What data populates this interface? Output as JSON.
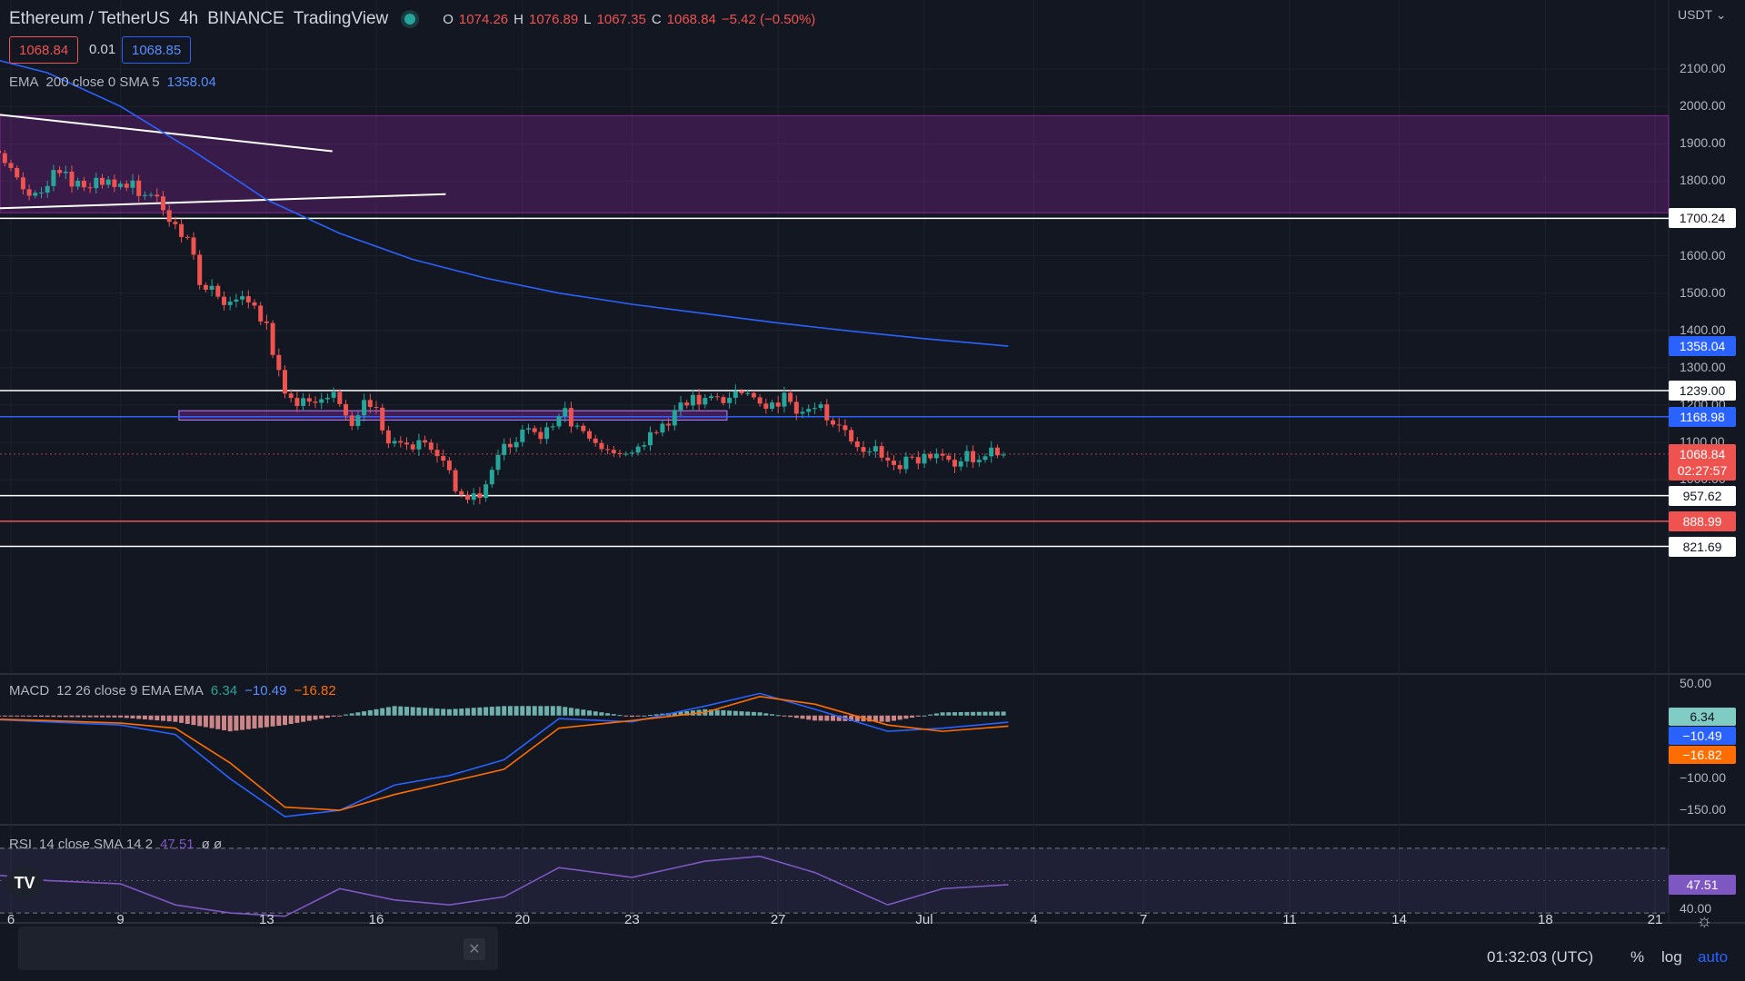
{
  "header": {
    "symbol": "Ethereum / TetherUS",
    "interval": "4h",
    "exchange": "BINANCE",
    "brand": "TradingView",
    "ohlc": {
      "o_label": "O",
      "o": "1074.26",
      "h_label": "H",
      "h": "1076.89",
      "l_label": "L",
      "l": "1067.35",
      "c_label": "C",
      "c": "1068.84",
      "change": "−5.42 (−0.50%)"
    },
    "sell_price": "1068.84",
    "spread": "0.01",
    "buy_price": "1068.85"
  },
  "currency": "USDT",
  "ema_legend": {
    "name": "EMA",
    "params": "200 close 0 SMA 5",
    "value": "1358.04"
  },
  "macd_legend": {
    "name": "MACD",
    "params": "12 26 close 9 EMA EMA",
    "v1": "6.34",
    "v2": "−10.49",
    "v3": "−16.82"
  },
  "rsi_legend": {
    "name": "RSI",
    "params": "14 close SMA 14 2",
    "value": "47.51",
    "extra": "ø ø"
  },
  "price_axis": [
    "2100.00",
    "2000.00",
    "1900.00",
    "1800.00",
    "1600.00",
    "1500.00",
    "1400.00",
    "1300.00",
    "1200.00",
    "1100.00",
    "1000.00"
  ],
  "price_tags": {
    "level_1700": "1700.24",
    "ema": "1358.04",
    "level_1239": "1239.00",
    "level_1168": "1168.98",
    "last": "1068.84",
    "countdown": "02:27:57",
    "level_957": "957.62",
    "level_888": "888.99",
    "level_821": "821.69"
  },
  "macd_axis": [
    "50.00",
    "−100.00",
    "−150.00"
  ],
  "macd_tags": {
    "hist": "6.34",
    "macd": "−10.49",
    "signal": "−16.82"
  },
  "rsi_axis": [
    "40.00"
  ],
  "rsi_tag": "47.51",
  "time_axis": [
    "6",
    "9",
    "13",
    "16",
    "20",
    "23",
    "27",
    "Jul",
    "4",
    "7",
    "11",
    "14",
    "18",
    "21"
  ],
  "bottom": {
    "clock": "01:32:03 (UTC)",
    "percent": "%",
    "log": "log",
    "auto": "auto"
  },
  "colors": {
    "up": "#26a69a",
    "down": "#ef5350",
    "ema": "#2962ff",
    "zone": "#9c27b0",
    "macd": "#2962ff",
    "signal": "#ff6d00",
    "rsi": "#7e57c2",
    "bg": "#131722"
  },
  "chart_data": {
    "type": "candlestick",
    "symbol": "Ethereum / TetherUS",
    "interval": "4h",
    "x_ticks": [
      "6",
      "9",
      "13",
      "16",
      "20",
      "23",
      "27",
      "Jul",
      "4",
      "7",
      "11",
      "14",
      "18",
      "21"
    ],
    "y_range": [
      780,
      2190
    ],
    "horizontal_levels": [
      1700.24,
      1239.0,
      1168.98,
      957.62,
      888.99,
      821.69
    ],
    "resistance_zone": [
      1715,
      1975
    ],
    "support_zone": [
      1160,
      1185
    ],
    "trendlines": [
      {
        "name": "upper",
        "from": {
          "day": 5.0,
          "price": 1985
        },
        "to": {
          "day": 14.8,
          "price": 1880
        }
      },
      {
        "name": "lower",
        "from": {
          "day": 5.0,
          "price": 1725
        },
        "to": {
          "day": 17.9,
          "price": 1765
        }
      }
    ],
    "close_path": [
      {
        "day": 5.0,
        "price": 1800
      },
      {
        "day": 5.5,
        "price": 1900
      },
      {
        "day": 6.0,
        "price": 1830
      },
      {
        "day": 6.6,
        "price": 1760
      },
      {
        "day": 7.2,
        "price": 1820
      },
      {
        "day": 8.0,
        "price": 1790
      },
      {
        "day": 8.7,
        "price": 1800
      },
      {
        "day": 9.4,
        "price": 1780
      },
      {
        "day": 9.9,
        "price": 1760
      },
      {
        "day": 10.3,
        "price": 1680
      },
      {
        "day": 10.8,
        "price": 1660
      },
      {
        "day": 11.2,
        "price": 1520
      },
      {
        "day": 11.8,
        "price": 1480
      },
      {
        "day": 12.4,
        "price": 1510
      },
      {
        "day": 13.0,
        "price": 1400
      },
      {
        "day": 13.4,
        "price": 1250
      },
      {
        "day": 13.9,
        "price": 1210
      },
      {
        "day": 14.4,
        "price": 1190
      },
      {
        "day": 14.9,
        "price": 1230
      },
      {
        "day": 15.3,
        "price": 1130
      },
      {
        "day": 15.8,
        "price": 1220
      },
      {
        "day": 16.3,
        "price": 1110
      },
      {
        "day": 16.8,
        "price": 1080
      },
      {
        "day": 17.3,
        "price": 1090
      },
      {
        "day": 17.8,
        "price": 1080
      },
      {
        "day": 18.2,
        "price": 960
      },
      {
        "day": 18.7,
        "price": 950
      },
      {
        "day": 19.1,
        "price": 1010
      },
      {
        "day": 19.6,
        "price": 1100
      },
      {
        "day": 20.1,
        "price": 1130
      },
      {
        "day": 20.6,
        "price": 1120
      },
      {
        "day": 21.1,
        "price": 1180
      },
      {
        "day": 21.6,
        "price": 1140
      },
      {
        "day": 22.1,
        "price": 1080
      },
      {
        "day": 22.6,
        "price": 1060
      },
      {
        "day": 23.1,
        "price": 1080
      },
      {
        "day": 23.6,
        "price": 1120
      },
      {
        "day": 24.1,
        "price": 1170
      },
      {
        "day": 24.6,
        "price": 1210
      },
      {
        "day": 25.1,
        "price": 1230
      },
      {
        "day": 25.6,
        "price": 1200
      },
      {
        "day": 26.1,
        "price": 1240
      },
      {
        "day": 26.6,
        "price": 1200
      },
      {
        "day": 27.1,
        "price": 1220
      },
      {
        "day": 27.6,
        "price": 1190
      },
      {
        "day": 28.1,
        "price": 1210
      },
      {
        "day": 28.6,
        "price": 1130
      },
      {
        "day": 29.1,
        "price": 1100
      },
      {
        "day": 29.6,
        "price": 1080
      },
      {
        "day": 30.1,
        "price": 1020
      },
      {
        "day": 30.6,
        "price": 1060
      },
      {
        "day": 31.1,
        "price": 1060
      },
      {
        "day": 31.6,
        "price": 1050
      },
      {
        "day": 32.1,
        "price": 1060
      },
      {
        "day": 32.6,
        "price": 1065
      },
      {
        "day": 33.1,
        "price": 1070
      },
      {
        "day": 33.3,
        "price": 1068
      }
    ],
    "ema200": [
      {
        "day": 5.0,
        "price": 2140
      },
      {
        "day": 7.0,
        "price": 2090
      },
      {
        "day": 9.0,
        "price": 2000
      },
      {
        "day": 11.0,
        "price": 1880
      },
      {
        "day": 13.0,
        "price": 1750
      },
      {
        "day": 15.0,
        "price": 1660
      },
      {
        "day": 17.0,
        "price": 1590
      },
      {
        "day": 19.0,
        "price": 1540
      },
      {
        "day": 21.0,
        "price": 1500
      },
      {
        "day": 23.0,
        "price": 1470
      },
      {
        "day": 25.0,
        "price": 1445
      },
      {
        "day": 27.0,
        "price": 1420
      },
      {
        "day": 29.0,
        "price": 1398
      },
      {
        "day": 31.0,
        "price": 1378
      },
      {
        "day": 33.3,
        "price": 1358
      }
    ],
    "macd": {
      "range": [
        -170,
        60
      ],
      "macd_line": [
        {
          "day": 5.0,
          "value": -5
        },
        {
          "day": 7.0,
          "value": -10
        },
        {
          "day": 9.0,
          "value": -15
        },
        {
          "day": 10.5,
          "value": -30
        },
        {
          "day": 12.0,
          "value": -100
        },
        {
          "day": 13.5,
          "value": -160
        },
        {
          "day": 15.0,
          "value": -150
        },
        {
          "day": 16.5,
          "value": -110
        },
        {
          "day": 18.0,
          "value": -95
        },
        {
          "day": 19.5,
          "value": -70
        },
        {
          "day": 21.0,
          "value": -5
        },
        {
          "day": 23.0,
          "value": -10
        },
        {
          "day": 25.0,
          "value": 15
        },
        {
          "day": 26.5,
          "value": 35
        },
        {
          "day": 28.0,
          "value": 10
        },
        {
          "day": 30.0,
          "value": -25
        },
        {
          "day": 31.5,
          "value": -20
        },
        {
          "day": 33.3,
          "value": -10.49
        }
      ],
      "signal_line": [
        {
          "day": 5.0,
          "value": -5
        },
        {
          "day": 7.0,
          "value": -8
        },
        {
          "day": 9.0,
          "value": -12
        },
        {
          "day": 10.5,
          "value": -20
        },
        {
          "day": 12.0,
          "value": -75
        },
        {
          "day": 13.5,
          "value": -145
        },
        {
          "day": 15.0,
          "value": -150
        },
        {
          "day": 16.5,
          "value": -125
        },
        {
          "day": 18.0,
          "value": -105
        },
        {
          "day": 19.5,
          "value": -85
        },
        {
          "day": 21.0,
          "value": -20
        },
        {
          "day": 23.0,
          "value": -8
        },
        {
          "day": 25.0,
          "value": 5
        },
        {
          "day": 26.5,
          "value": 30
        },
        {
          "day": 28.0,
          "value": 18
        },
        {
          "day": 30.0,
          "value": -15
        },
        {
          "day": 31.5,
          "value": -25
        },
        {
          "day": 33.3,
          "value": -16.82
        }
      ]
    },
    "rsi": {
      "range": [
        25,
        80
      ],
      "bands": [
        70,
        30
      ],
      "line": [
        {
          "day": 5.0,
          "value": 55
        },
        {
          "day": 7.0,
          "value": 50
        },
        {
          "day": 9.0,
          "value": 48
        },
        {
          "day": 10.5,
          "value": 35
        },
        {
          "day": 12.0,
          "value": 30
        },
        {
          "day": 13.5,
          "value": 28
        },
        {
          "day": 15.0,
          "value": 45
        },
        {
          "day": 16.5,
          "value": 38
        },
        {
          "day": 18.0,
          "value": 35
        },
        {
          "day": 19.5,
          "value": 40
        },
        {
          "day": 21.0,
          "value": 58
        },
        {
          "day": 23.0,
          "value": 52
        },
        {
          "day": 25.0,
          "value": 62
        },
        {
          "day": 26.5,
          "value": 65
        },
        {
          "day": 28.0,
          "value": 55
        },
        {
          "day": 30.0,
          "value": 35
        },
        {
          "day": 31.5,
          "value": 45
        },
        {
          "day": 33.3,
          "value": 47.51
        }
      ]
    }
  }
}
